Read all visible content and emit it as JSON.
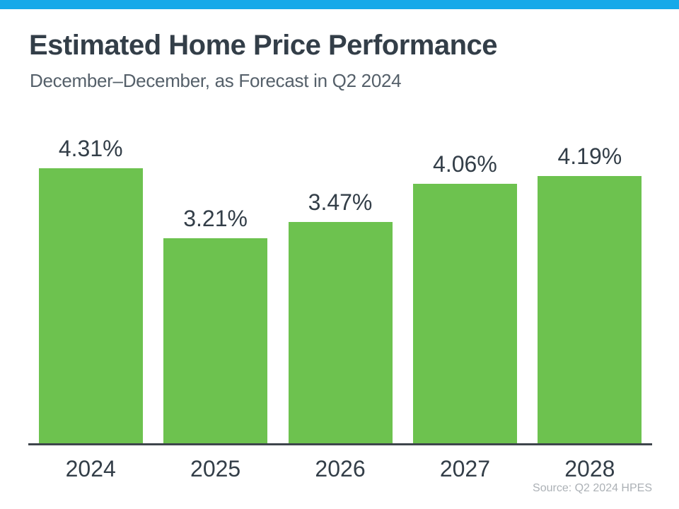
{
  "accent_bar_color": "#17A9E9",
  "header": {
    "title": "Estimated Home Price Performance",
    "subtitle": "December–December, as Forecast in Q2 2024"
  },
  "footer": {
    "source": "Source: Q2 2024 HPES"
  },
  "chart_data": {
    "type": "bar",
    "title": "Estimated Home Price Performance",
    "subtitle": "December–December, as Forecast in Q2 2024",
    "categories": [
      "2024",
      "2025",
      "2026",
      "2027",
      "2028"
    ],
    "values": [
      4.31,
      3.21,
      3.47,
      4.06,
      4.19
    ],
    "value_labels": [
      "4.31%",
      "3.21%",
      "3.47%",
      "4.06%",
      "4.19%"
    ],
    "unit": "percent",
    "bar_color": "#6DC24F",
    "label_color": "#333E48",
    "ylim": [
      0,
      4.84
    ],
    "grid": false,
    "legend": false,
    "source": "Source: Q2 2024 HPES"
  }
}
